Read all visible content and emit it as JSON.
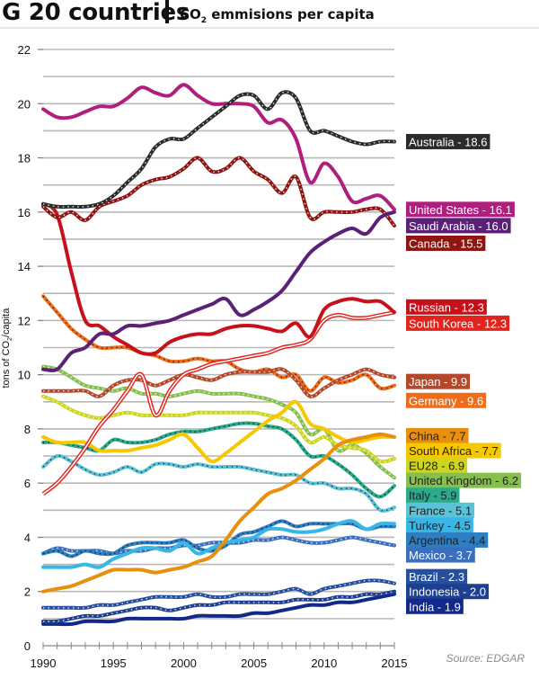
{
  "header": {
    "title": "G 20 countries",
    "subtitle_prefix": "CO",
    "subtitle_sub": "2",
    "subtitle_suffix": " emmisions per capita"
  },
  "source": "Source: EDGAR",
  "chart_data": {
    "type": "line",
    "title": "G 20 countries | CO2 emmisions per capita",
    "xlabel": "",
    "ylabel": "tons of CO2/capita",
    "ylabel_parts": {
      "prefix": "tons of CO",
      "sub": "2",
      "suffix": "/capita"
    },
    "xlim": [
      1990,
      2015
    ],
    "ylim": [
      0,
      22
    ],
    "x_ticks": [
      1990,
      1995,
      2000,
      2005,
      2010,
      2015
    ],
    "y_ticks": [
      0,
      2,
      4,
      6,
      8,
      10,
      12,
      14,
      16,
      18,
      20,
      22
    ],
    "grid": "horizontal, every 1 unit",
    "legend": "right (end-of-line labels)",
    "x": [
      1990,
      1991,
      1992,
      1993,
      1994,
      1995,
      1996,
      1997,
      1998,
      1999,
      2000,
      2001,
      2002,
      2003,
      2004,
      2005,
      2006,
      2007,
      2008,
      2009,
      2010,
      2011,
      2012,
      2013,
      2014,
      2015
    ],
    "series": [
      {
        "name": "Australia",
        "label": "Australia - 18.6",
        "color": "#2b2b2b",
        "style": "dotted",
        "final": 18.6,
        "values": [
          16.3,
          16.2,
          16.2,
          16.2,
          16.3,
          16.6,
          17.1,
          17.6,
          18.4,
          18.7,
          18.7,
          19.1,
          19.5,
          19.9,
          20.3,
          20.3,
          19.8,
          20.4,
          20.2,
          19.0,
          19.0,
          18.8,
          18.6,
          18.5,
          18.6,
          18.6
        ]
      },
      {
        "name": "United States",
        "label": "United States - 16.1",
        "color": "#b01f7e",
        "style": "solid",
        "final": 16.1,
        "values": [
          19.8,
          19.5,
          19.5,
          19.7,
          19.9,
          19.9,
          20.2,
          20.6,
          20.4,
          20.3,
          20.7,
          20.3,
          20.0,
          20.0,
          20.0,
          19.9,
          19.3,
          19.4,
          18.7,
          17.1,
          17.8,
          17.3,
          16.4,
          16.5,
          16.6,
          16.1
        ]
      },
      {
        "name": "Saudi Arabia",
        "label": "Saudi Arabia - 16.0",
        "color": "#5b2177",
        "style": "solid",
        "final": 16.0,
        "values": [
          10.2,
          10.2,
          10.8,
          11.0,
          11.5,
          11.5,
          11.8,
          11.8,
          11.9,
          12.0,
          12.2,
          12.4,
          12.6,
          12.8,
          12.2,
          12.4,
          12.7,
          13.1,
          13.8,
          14.5,
          14.9,
          15.2,
          15.4,
          15.2,
          15.8,
          16.0
        ]
      },
      {
        "name": "Canada",
        "label": "Canada - 15.5",
        "color": "#8e1512",
        "style": "dotted",
        "final": 15.5,
        "values": [
          16.2,
          15.8,
          16.0,
          15.7,
          16.2,
          16.4,
          16.6,
          17.0,
          17.2,
          17.3,
          17.6,
          18.0,
          17.5,
          17.6,
          18.0,
          17.5,
          17.2,
          16.7,
          17.3,
          15.8,
          16.0,
          16.0,
          16.0,
          16.1,
          16.1,
          15.5
        ]
      },
      {
        "name": "Russian",
        "label": "Russian - 12.3",
        "color": "#c8101a",
        "style": "solid",
        "final": 12.3,
        "values": [
          16.3,
          15.9,
          13.8,
          12.0,
          11.8,
          11.4,
          11.1,
          10.8,
          10.8,
          11.2,
          11.4,
          11.5,
          11.5,
          11.7,
          11.8,
          11.8,
          11.7,
          11.6,
          11.9,
          11.4,
          12.4,
          12.7,
          12.8,
          12.7,
          12.7,
          12.3
        ]
      },
      {
        "name": "South Korea",
        "label": "South Korea - 12.3",
        "color": "#e3231d",
        "style": "double",
        "final": 12.3,
        "values": [
          5.6,
          6.0,
          6.6,
          7.3,
          8.1,
          8.7,
          9.4,
          10.0,
          8.5,
          9.4,
          10.0,
          10.2,
          10.4,
          10.5,
          10.6,
          10.7,
          10.8,
          11.0,
          11.1,
          11.3,
          12.0,
          12.2,
          12.1,
          12.1,
          12.2,
          12.3
        ]
      },
      {
        "name": "Japan",
        "label": "Japan - 9.9",
        "color": "#b5472a",
        "style": "dotted",
        "final": 9.9,
        "values": [
          9.4,
          9.4,
          9.4,
          9.4,
          9.2,
          9.6,
          9.8,
          9.8,
          9.6,
          9.8,
          10.0,
          9.9,
          9.8,
          10.0,
          10.1,
          10.1,
          10.1,
          10.2,
          9.8,
          9.2,
          9.5,
          9.8,
          10.0,
          10.2,
          10.0,
          9.9
        ]
      },
      {
        "name": "Germany",
        "label": "Germany - 9.6",
        "color": "#ef6c1b",
        "style": "dotted",
        "final": 9.6,
        "values": [
          12.9,
          12.3,
          11.7,
          11.3,
          11.0,
          11.0,
          11.0,
          10.8,
          10.7,
          10.5,
          10.5,
          10.6,
          10.5,
          10.5,
          10.2,
          10.1,
          10.2,
          9.9,
          10.0,
          9.4,
          9.9,
          9.7,
          9.8,
          10.0,
          9.5,
          9.6
        ]
      },
      {
        "name": "China",
        "label": "China - 7.7",
        "color": "#e8900e",
        "style": "solid",
        "final": 7.7,
        "values": [
          2.0,
          2.1,
          2.2,
          2.4,
          2.6,
          2.8,
          2.8,
          2.8,
          2.7,
          2.8,
          2.9,
          3.1,
          3.3,
          3.9,
          4.6,
          5.1,
          5.6,
          5.8,
          6.1,
          6.5,
          6.9,
          7.4,
          7.6,
          7.7,
          7.8,
          7.7
        ]
      },
      {
        "name": "South Africa",
        "label": "South Africa - 7.7",
        "color": "#f5c800",
        "style": "solid",
        "final": 7.7,
        "values": [
          7.7,
          7.5,
          7.5,
          7.5,
          7.2,
          7.2,
          7.2,
          7.3,
          7.4,
          7.6,
          7.8,
          7.3,
          6.8,
          7.1,
          7.5,
          7.9,
          8.3,
          8.6,
          9.0,
          8.2,
          8.0,
          7.7,
          7.5,
          7.6,
          7.7,
          7.7
        ]
      },
      {
        "name": "EU28",
        "label": "EU28 - 6.9",
        "color": "#cfd41e",
        "style": "dotted",
        "final": 6.9,
        "values": [
          9.2,
          9.0,
          8.7,
          8.5,
          8.4,
          8.5,
          8.6,
          8.5,
          8.5,
          8.5,
          8.5,
          8.6,
          8.6,
          8.6,
          8.6,
          8.6,
          8.5,
          8.4,
          8.1,
          7.5,
          7.7,
          7.4,
          7.3,
          7.2,
          6.8,
          6.9
        ]
      },
      {
        "name": "United Kingdom",
        "label": "United Kingdom - 6.2",
        "color": "#86c04c",
        "style": "dotted",
        "final": 6.2,
        "values": [
          10.3,
          10.2,
          9.9,
          9.6,
          9.5,
          9.4,
          9.5,
          9.3,
          9.3,
          9.2,
          9.3,
          9.4,
          9.3,
          9.3,
          9.3,
          9.2,
          9.1,
          8.9,
          8.6,
          7.8,
          8.0,
          7.2,
          7.4,
          7.1,
          6.6,
          6.2
        ]
      },
      {
        "name": "Italy",
        "label": "Italy - 5.9",
        "color": "#2bab8c",
        "style": "dotted",
        "final": 5.9,
        "values": [
          7.5,
          7.5,
          7.4,
          7.3,
          7.2,
          7.6,
          7.5,
          7.5,
          7.6,
          7.8,
          7.9,
          7.9,
          8.0,
          8.1,
          8.2,
          8.2,
          8.1,
          8.0,
          7.6,
          7.0,
          7.0,
          6.7,
          6.3,
          5.8,
          5.5,
          5.9
        ]
      },
      {
        "name": "France",
        "label": "France - 5.1",
        "color": "#5bc3d8",
        "style": "dotted",
        "final": 5.1,
        "values": [
          6.6,
          7.0,
          6.8,
          6.5,
          6.3,
          6.4,
          6.6,
          6.4,
          6.7,
          6.7,
          6.6,
          6.7,
          6.6,
          6.6,
          6.6,
          6.5,
          6.4,
          6.3,
          6.3,
          6.0,
          6.0,
          5.8,
          5.8,
          5.6,
          5.0,
          5.1
        ]
      },
      {
        "name": "Turkey",
        "label": "Turkey - 4.5",
        "color": "#38b6e6",
        "style": "solid",
        "final": 4.5,
        "values": [
          2.9,
          2.9,
          2.9,
          3.0,
          2.9,
          3.2,
          3.4,
          3.6,
          3.6,
          3.5,
          3.8,
          3.4,
          3.6,
          3.8,
          3.9,
          4.0,
          4.3,
          4.3,
          4.2,
          4.2,
          4.3,
          4.5,
          4.6,
          4.3,
          4.5,
          4.5
        ]
      },
      {
        "name": "Argentina",
        "label": "Argentina - 4.4",
        "color": "#2e7ec2",
        "style": "dotted",
        "final": 4.4,
        "values": [
          3.4,
          3.5,
          3.3,
          3.5,
          3.4,
          3.4,
          3.7,
          3.8,
          3.8,
          3.8,
          3.9,
          3.6,
          3.5,
          3.7,
          4.1,
          4.2,
          4.4,
          4.6,
          4.4,
          4.5,
          4.5,
          4.5,
          4.5,
          4.3,
          4.4,
          4.4
        ]
      },
      {
        "name": "Mexico",
        "label": "Mexico - 3.7",
        "color": "#3a6fbf",
        "style": "dotted",
        "final": 3.7,
        "values": [
          3.4,
          3.6,
          3.5,
          3.5,
          3.5,
          3.4,
          3.5,
          3.5,
          3.6,
          3.6,
          3.7,
          3.7,
          3.8,
          3.8,
          3.8,
          3.9,
          3.9,
          4.0,
          3.9,
          3.8,
          3.8,
          3.9,
          4.0,
          3.9,
          3.8,
          3.7
        ]
      },
      {
        "name": "Brazil",
        "label": "Brazil - 2.3",
        "color": "#264f9e",
        "style": "dotted",
        "final": 2.3,
        "values": [
          1.4,
          1.4,
          1.4,
          1.4,
          1.5,
          1.5,
          1.6,
          1.7,
          1.8,
          1.8,
          1.8,
          1.9,
          1.8,
          1.8,
          1.9,
          1.9,
          1.9,
          2.0,
          2.1,
          1.9,
          2.1,
          2.2,
          2.3,
          2.4,
          2.4,
          2.3
        ]
      },
      {
        "name": "Indonesia",
        "label": "Indonesia - 2.0",
        "color": "#1f3f91",
        "style": "dotted",
        "final": 2.0,
        "values": [
          0.9,
          0.9,
          1.0,
          1.1,
          1.1,
          1.2,
          1.3,
          1.4,
          1.4,
          1.3,
          1.4,
          1.5,
          1.5,
          1.6,
          1.6,
          1.6,
          1.6,
          1.6,
          1.7,
          1.7,
          1.7,
          1.8,
          1.8,
          1.9,
          1.9,
          2.0
        ]
      },
      {
        "name": "India",
        "label": "India - 1.9",
        "color": "#10298a",
        "style": "solid",
        "final": 1.9,
        "values": [
          0.8,
          0.8,
          0.8,
          0.9,
          0.9,
          0.9,
          1.0,
          1.0,
          1.0,
          1.0,
          1.0,
          1.1,
          1.1,
          1.1,
          1.1,
          1.2,
          1.2,
          1.3,
          1.4,
          1.5,
          1.5,
          1.6,
          1.6,
          1.7,
          1.8,
          1.9
        ]
      }
    ],
    "label_positions": {
      "Australia": 18.6,
      "United States": 16.1,
      "Saudi Arabia": 15.5,
      "Canada": 14.85,
      "Russian": 12.5,
      "South Korea": 11.9,
      "Japan": 9.75,
      "Germany": 9.05,
      "China": 7.75,
      "South Africa": 7.2,
      "EU28": 6.65,
      "United Kingdom": 6.1,
      "Italy": 5.55,
      "France": 5.0,
      "Turkey": 4.45,
      "Argentina": 3.9,
      "Mexico": 3.35,
      "Brazil": 2.55,
      "Indonesia": 2.0,
      "India": 1.45
    },
    "label_text_colors": {
      "Australia": "#ffffff",
      "United States": "#ffffff",
      "Saudi Arabia": "#ffffff",
      "Canada": "#ffffff",
      "Russian": "#ffffff",
      "South Korea": "#ffffff",
      "Japan": "#ffffff",
      "Germany": "#ffffff",
      "China": "#222222",
      "South Africa": "#222222",
      "EU28": "#222222",
      "United Kingdom": "#222222",
      "Italy": "#222222",
      "France": "#222222",
      "Turkey": "#222222",
      "Argentina": "#222222",
      "Mexico": "#ffffff",
      "Brazil": "#ffffff",
      "Indonesia": "#ffffff",
      "India": "#ffffff"
    }
  }
}
